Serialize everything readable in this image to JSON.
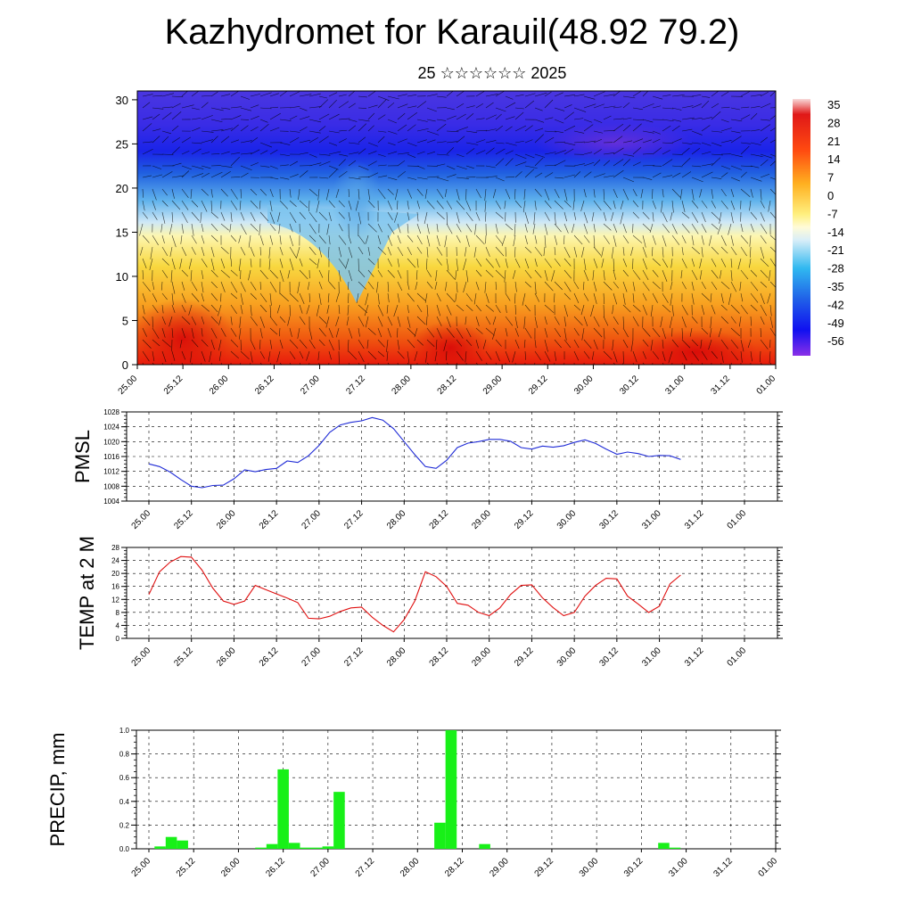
{
  "title": "Kazhydromet for Karauil(48.92 79.2)",
  "subtitle": "25 ☆☆☆☆☆☆ 2025",
  "colors": {
    "pmsl_line": "#1f2bd6",
    "temp_line": "#e01010",
    "precip_bar": "#18f018"
  },
  "time_ticks": [
    "25.00",
    "25.12",
    "26.00",
    "26.12",
    "27.00",
    "27.12",
    "28.00",
    "28.12",
    "29.00",
    "29.12",
    "30.00",
    "30.12",
    "31.00",
    "31.12",
    "01.00"
  ],
  "chart_data": [
    {
      "type": "heatmap",
      "title": "",
      "xlabel": "",
      "ylabel": "",
      "x": [
        "25.00",
        "25.12",
        "26.00",
        "26.12",
        "27.00",
        "27.12",
        "28.00",
        "28.12",
        "29.00",
        "29.12",
        "30.00",
        "30.12",
        "31.00",
        "31.12",
        "01.00"
      ],
      "y_ticks": [
        "0",
        "5",
        "10",
        "15",
        "20",
        "25",
        "30"
      ],
      "ylim": [
        0,
        31
      ],
      "colorbar_labels": [
        "35",
        "28",
        "21",
        "14",
        "7",
        "0",
        "-7",
        "-14",
        "-21",
        "-28",
        "-35",
        "-42",
        "-49",
        "-56"
      ],
      "wind_barbs": true
    },
    {
      "type": "line",
      "ylabel": "PMSL",
      "ylim": [
        1004,
        1028
      ],
      "y_ticks": [
        "1004",
        "1008",
        "1012",
        "1016",
        "1020",
        "1024",
        "1028"
      ],
      "x_hours": [
        0,
        3,
        6,
        9,
        12,
        15,
        18,
        21,
        24,
        27,
        30,
        33,
        36,
        39,
        42,
        45,
        48,
        51,
        54,
        57,
        60,
        63,
        66,
        69,
        72,
        75,
        78,
        81,
        84,
        87,
        90,
        93,
        96,
        99,
        102,
        105,
        108,
        111,
        114,
        117,
        120,
        123,
        126,
        129,
        132,
        135,
        138,
        141,
        144,
        147,
        150
      ],
      "values": [
        1014.0,
        1013.3,
        1011.8,
        1009.8,
        1008.0,
        1007.6,
        1008.2,
        1008.3,
        1010.0,
        1012.4,
        1011.9,
        1012.5,
        1012.8,
        1014.8,
        1014.4,
        1016.2,
        1019.0,
        1022.5,
        1024.5,
        1025.2,
        1025.6,
        1026.5,
        1025.8,
        1023.5,
        1020.0,
        1016.5,
        1013.3,
        1012.8,
        1015.0,
        1018.4,
        1019.6,
        1020.0,
        1020.6,
        1020.6,
        1020.1,
        1018.4,
        1018.0,
        1018.8,
        1018.5,
        1018.9,
        1019.8,
        1020.5,
        1019.5,
        1018.0,
        1016.6,
        1017.2,
        1016.8,
        1016.0,
        1016.3,
        1016.2,
        1015.2
      ]
    },
    {
      "type": "line",
      "ylabel": "TEMP at 2 M",
      "ylim": [
        0,
        28
      ],
      "y_ticks": [
        "0",
        "4",
        "8",
        "12",
        "16",
        "20",
        "24",
        "28"
      ],
      "x_hours": [
        0,
        3,
        6,
        9,
        12,
        15,
        18,
        21,
        24,
        27,
        30,
        33,
        36,
        39,
        42,
        45,
        48,
        51,
        54,
        57,
        60,
        63,
        66,
        69,
        72,
        75,
        78,
        81,
        84,
        87,
        90,
        93,
        96,
        99,
        102,
        105,
        108,
        111,
        114,
        117,
        120,
        123,
        126,
        129,
        132,
        135,
        138,
        141,
        144,
        147,
        150
      ],
      "values": [
        13.5,
        20.5,
        23.5,
        25.2,
        25.0,
        21.0,
        15.5,
        11.5,
        10.5,
        11.5,
        16.3,
        15.0,
        13.7,
        12.4,
        11.0,
        6.2,
        6.0,
        6.8,
        8.3,
        9.4,
        9.6,
        6.5,
        4.0,
        2.0,
        5.8,
        11.5,
        20.5,
        19.0,
        16.0,
        10.8,
        10.2,
        8.0,
        7.0,
        9.4,
        13.5,
        16.3,
        16.5,
        12.5,
        9.5,
        7.0,
        8.0,
        13.0,
        16.3,
        18.5,
        18.3,
        13.0,
        10.6,
        8.0,
        9.9,
        16.8,
        19.5
      ]
    },
    {
      "type": "bar",
      "ylabel": "PRECIP, mm",
      "ylim": [
        0,
        1.0
      ],
      "y_ticks": [
        "0.0",
        "0.2",
        "0.4",
        "0.6",
        "0.8",
        "1.0"
      ],
      "x_hours": [
        3,
        6,
        9,
        30,
        33,
        36,
        39,
        42,
        45,
        48,
        51,
        78,
        81,
        90,
        138,
        141
      ],
      "values": [
        0.02,
        0.1,
        0.07,
        0.01,
        0.04,
        0.67,
        0.05,
        0.01,
        0.01,
        0.02,
        0.48,
        0.22,
        1.0,
        0.04,
        0.05,
        0.01
      ]
    }
  ]
}
